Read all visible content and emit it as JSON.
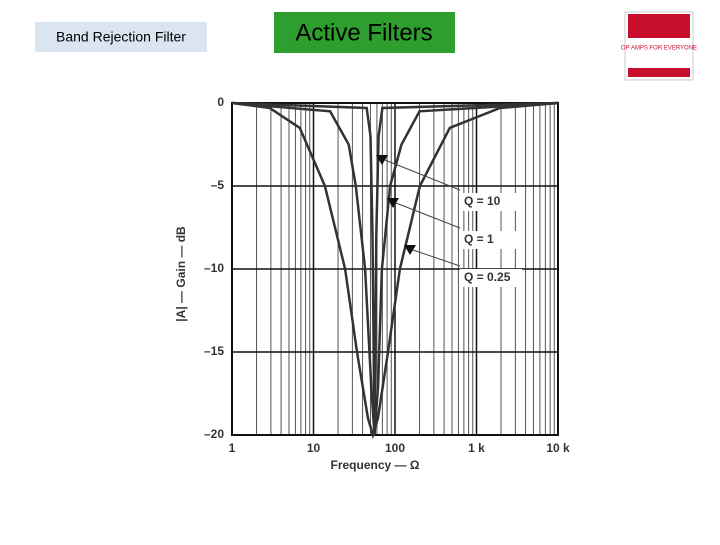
{
  "header": {
    "subtitle": "Band Rejection Filter",
    "title": "Active Filters",
    "book_cover": "OP AMPS FOR EVERYONE"
  },
  "chart_data": {
    "type": "line",
    "x_label": "Frequency — Ω",
    "y_label": "|A| — Gain — dB",
    "log_x": true,
    "grid": true,
    "xlim": [
      1,
      10000
    ],
    "xticks": [
      1,
      10,
      100,
      {
        "value": 1000,
        "label": "1 k"
      },
      {
        "value": 10000,
        "label": "10 k"
      }
    ],
    "xminorticks": [
      2,
      3,
      4,
      5,
      6,
      7,
      8,
      9,
      20,
      30,
      40,
      50,
      60,
      70,
      80,
      90,
      200,
      300,
      400,
      500,
      600,
      700,
      800,
      900,
      2000,
      3000,
      4000,
      5000,
      6000,
      7000,
      8000,
      9000
    ],
    "ylim": [
      -20,
      0
    ],
    "yticks": [
      0,
      {
        "value": -5,
        "label": "–5"
      },
      {
        "value": -10,
        "label": "–10"
      },
      {
        "value": -15,
        "label": "–15"
      },
      {
        "value": -20,
        "label": "–20"
      }
    ],
    "series": [
      {
        "name": "Q = 10",
        "color": "#333333",
        "x": [
          1,
          45,
          50,
          53,
          56,
          59,
          63,
          70,
          10000
        ],
        "values": [
          0,
          -0.3,
          -2,
          -8,
          -20,
          -8,
          -2,
          -0.3,
          0
        ]
      },
      {
        "name": "Q = 1",
        "color": "#333333",
        "x": [
          1,
          16,
          27,
          33,
          43,
          51,
          56,
          62,
          69,
          87,
          120,
          200,
          10000
        ],
        "values": [
          0,
          -0.5,
          -2.5,
          -5,
          -10,
          -17,
          -20,
          -17,
          -10,
          -5,
          -2.5,
          -0.5,
          0
        ]
      },
      {
        "name": "Q = 0.25",
        "color": "#333333",
        "x": [
          1,
          2.9,
          6.8,
          13.8,
          24.4,
          34.2,
          46.6,
          53.6,
          61.7,
          82,
          115,
          202,
          470,
          1940,
          10000
        ],
        "values": [
          0,
          -0.3,
          -1.5,
          -5,
          -10,
          -15,
          -19,
          -20,
          -19,
          -15,
          -10,
          -5,
          -1.5,
          -0.3,
          0
        ]
      }
    ]
  }
}
